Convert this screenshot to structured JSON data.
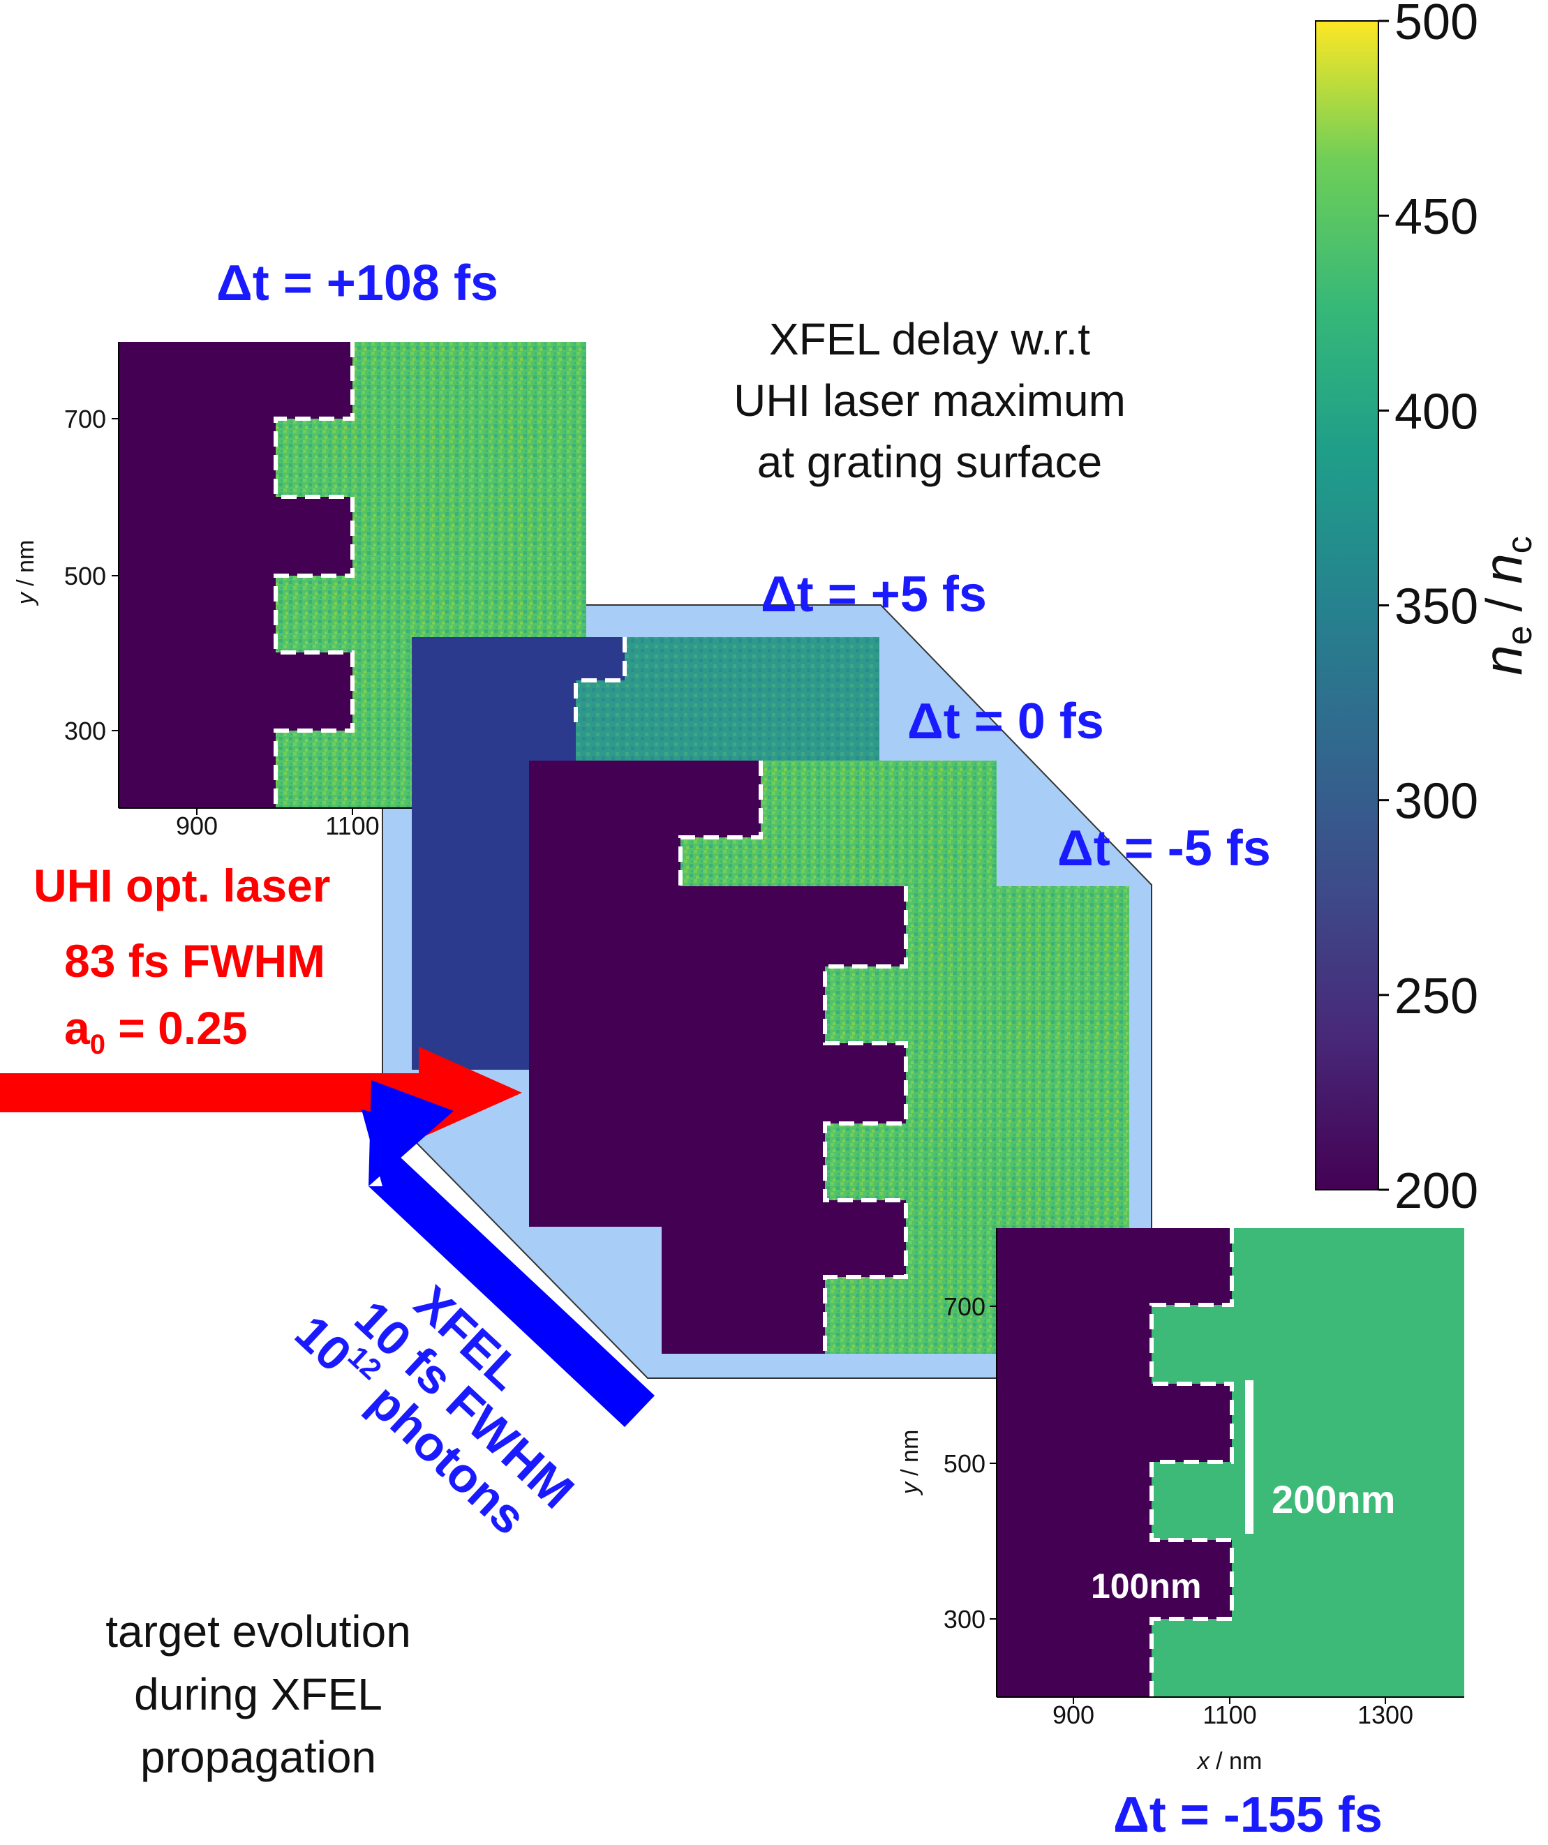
{
  "panels": {
    "top_left": {
      "delay": "Δt = +108 fs",
      "yticks": [
        "700",
        "500",
        "300"
      ],
      "xticks": [
        "900",
        "1100"
      ],
      "ylabel_var": "y",
      "ylabel_unit": " / nm"
    },
    "stack": [
      "Δt = +5 fs",
      "Δt = 0 fs",
      "Δt = -5 fs"
    ],
    "bottom_right": {
      "delay": "Δt = -155 fs",
      "yticks": [
        "700",
        "500",
        "300"
      ],
      "xticks": [
        "900",
        "1100",
        "1300"
      ],
      "ylabel_var": "y",
      "ylabel_unit": " / nm",
      "xlabel_var": "x",
      "xlabel_unit": " / nm",
      "scale_vertical": "200nm",
      "scale_gap": "100nm"
    }
  },
  "annotation_center": [
    "XFEL delay w.r.t",
    "UHI laser maximum",
    "at grating surface"
  ],
  "uhi_laser": {
    "line1": "UHI opt. laser",
    "line2": "83 fs FWHM",
    "line3_main": "a",
    "line3_sub": "0",
    "line3_rest": " = 0.25"
  },
  "xfel": {
    "line1": "XFEL",
    "line2": "10 fs FWHM",
    "line3_base": "10",
    "line3_sup": "12",
    "line3_rest": " photons"
  },
  "caption": [
    "target evolution",
    "during XFEL",
    "propagation"
  ],
  "colorbar": {
    "ticks": [
      "500",
      "450",
      "400",
      "350",
      "300",
      "250",
      "200"
    ],
    "label_num": "n",
    "label_num_sub": "e",
    "label_sep": " / ",
    "label_den": "n",
    "label_den_sub": "c"
  },
  "colors": {
    "substrate": "#440154",
    "plasma_bright": "#56c667",
    "plasma_dim": "#3bb77a",
    "highlight_bg": "#a8cdf7",
    "arrow_red": "#ff0000",
    "arrow_blue": "#0000ff"
  }
}
